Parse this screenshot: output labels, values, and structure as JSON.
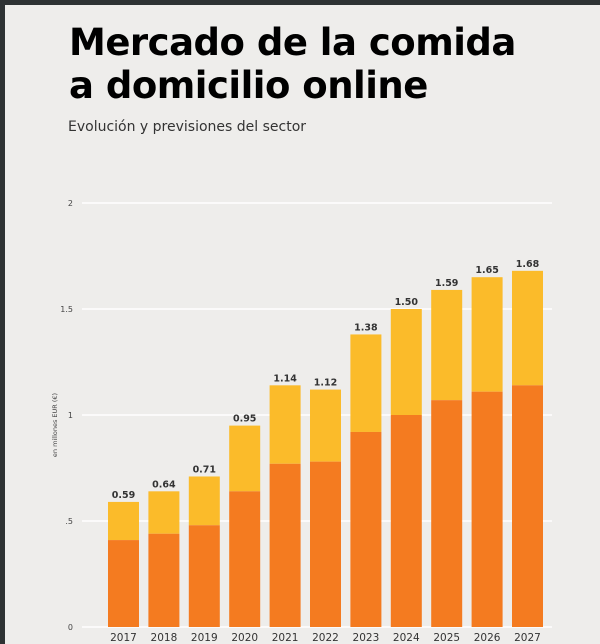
{
  "colors": {
    "accent": "#f47b20",
    "bottom_segment": "#f47b20",
    "top_segment": "#fbbb2a",
    "background": "#eeedeb",
    "frame": "#2e3233"
  },
  "chart_data": {
    "type": "bar",
    "stacked": true,
    "title_lines": [
      "Mercado de la comida",
      "a domicilio online"
    ],
    "subtitle": "Evolución y previsiones del sector",
    "ylabel": "en millones EUR (€)",
    "xlabel": "",
    "ylim": [
      0,
      2
    ],
    "yticks": [
      0,
      0.5,
      1,
      1.5,
      2
    ],
    "ytick_labels": [
      "0",
      ".5",
      "1",
      "1.5",
      "2"
    ],
    "grid": true,
    "categories": [
      "2017",
      "2018",
      "2019",
      "2020",
      "2021",
      "2022",
      "2023",
      "2024",
      "2025",
      "2026",
      "2027"
    ],
    "totals": [
      0.59,
      0.64,
      0.71,
      0.95,
      1.14,
      1.12,
      1.38,
      1.5,
      1.59,
      1.65,
      1.68
    ],
    "total_labels": [
      "0.59",
      "0.64",
      "0.71",
      "0.95",
      "1.14",
      "1.12",
      "1.38",
      "1.50",
      "1.59",
      "1.65",
      "1.68"
    ],
    "series": [
      {
        "values": [
          0.41,
          0.44,
          0.48,
          0.64,
          0.77,
          0.78,
          0.92,
          1.0,
          1.07,
          1.11,
          1.14
        ]
      },
      {
        "values": [
          0.18,
          0.2,
          0.23,
          0.31,
          0.37,
          0.34,
          0.46,
          0.5,
          0.52,
          0.54,
          0.54
        ]
      }
    ]
  }
}
